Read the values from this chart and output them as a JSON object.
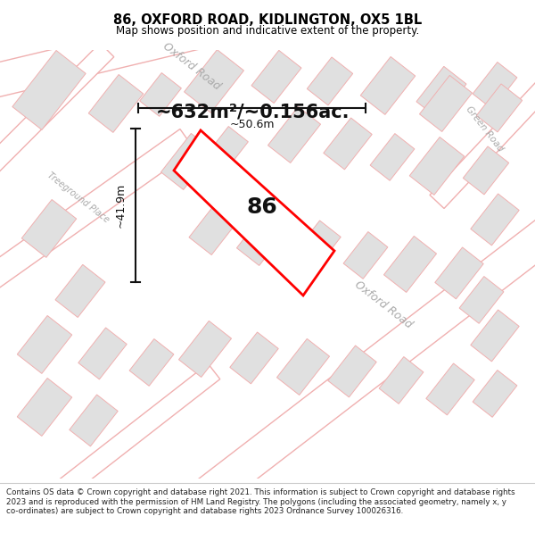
{
  "title": "86, OXFORD ROAD, KIDLINGTON, OX5 1BL",
  "subtitle": "Map shows position and indicative extent of the property.",
  "area_text": "~632m²/~0.156ac.",
  "width_label": "~50.6m",
  "height_label": "~41.9m",
  "number_label": "86",
  "map_bg": "#fafafa",
  "road_fill": "#ffffff",
  "road_outline": "#f0b0b0",
  "building_fill": "#e0e0e0",
  "building_outline": "#f0b0b0",
  "plot_fill": "#ffffff",
  "plot_outline": "#ff0000",
  "dim_color": "#111111",
  "street_label_color": "#aaaaaa",
  "footer_text": "Contains OS data © Crown copyright and database right 2021. This information is subject to Crown copyright and database rights 2023 and is reproduced with the permission of HM Land Registry. The polygons (including the associated geometry, namely x, y co-ordinates) are subject to Crown copyright and database rights 2023 Ordnance Survey 100026316.",
  "title_fontsize": 10.5,
  "subtitle_fontsize": 8.5,
  "area_fontsize": 15,
  "number_fontsize": 18,
  "dim_fontsize": 9,
  "street_fontsize": 9,
  "footer_fontsize": 6.3
}
